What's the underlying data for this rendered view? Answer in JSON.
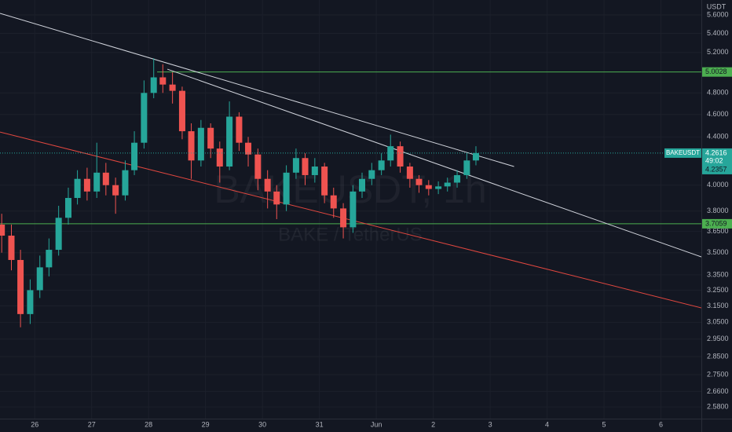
{
  "chart_data": {
    "type": "candlestick",
    "title": "BAKEUSDT, 1h",
    "subtitle": "BAKE / TetherUS",
    "y_unit": "USDT",
    "log_scale": true,
    "grid": true,
    "xlim": [
      25.39,
      37.71
    ],
    "ylim": [
      2.521,
      5.768
    ],
    "xticks": [
      26,
      27,
      28,
      29,
      30,
      31,
      {
        "value": 32,
        "label": "Jun"
      },
      {
        "value": 33,
        "label": "2"
      },
      {
        "value": 34,
        "label": "3"
      },
      {
        "value": 35,
        "label": "4"
      },
      {
        "value": 36,
        "label": "5"
      },
      {
        "value": 37,
        "label": "6"
      }
    ],
    "yticks": [
      {
        "value": 5.6,
        "label": "5.6000"
      },
      {
        "value": 5.4,
        "label": "5.4000"
      },
      {
        "value": 5.2,
        "label": "5.2000"
      },
      {
        "value": 4.8,
        "label": "4.8000"
      },
      {
        "value": 4.6,
        "label": "4.6000"
      },
      {
        "value": 4.4,
        "label": "4.4000"
      },
      {
        "value": 4.0,
        "label": "4.0000"
      },
      {
        "value": 3.8,
        "label": "3.8000"
      },
      {
        "value": 3.65,
        "label": "3.6500"
      },
      {
        "value": 3.5,
        "label": "3.5000"
      },
      {
        "value": 3.35,
        "label": "3.3500"
      },
      {
        "value": 3.25,
        "label": "3.2500"
      },
      {
        "value": 3.15,
        "label": "3.1500"
      },
      {
        "value": 3.05,
        "label": "3.0500"
      },
      {
        "value": 2.95,
        "label": "2.9500"
      },
      {
        "value": 2.85,
        "label": "2.8500"
      },
      {
        "value": 2.75,
        "label": "2.7500"
      },
      {
        "value": 2.66,
        "label": "2.6600"
      },
      {
        "value": 2.58,
        "label": "2.5800"
      }
    ],
    "up_color": "#26a69a",
    "down_color": "#ef5350",
    "candles": {
      "x": [
        25.42,
        25.59,
        25.75,
        25.92,
        26.09,
        26.25,
        26.42,
        26.59,
        26.75,
        26.92,
        27.09,
        27.25,
        27.42,
        27.59,
        27.75,
        27.92,
        28.09,
        28.25,
        28.42,
        28.59,
        28.75,
        28.92,
        29.09,
        29.25,
        29.42,
        29.59,
        29.75,
        29.92,
        30.09,
        30.25,
        30.42,
        30.59,
        30.75,
        30.92,
        31.09,
        31.25,
        31.42,
        31.59,
        31.75,
        31.92,
        32.09,
        32.25,
        32.42,
        32.59,
        32.75,
        32.92,
        33.09,
        33.25,
        33.42,
        33.59,
        33.75
      ],
      "open": [
        3.7,
        3.62,
        3.45,
        3.1,
        3.25,
        3.4,
        3.52,
        3.75,
        3.9,
        4.05,
        3.95,
        4.1,
        4.0,
        3.92,
        4.12,
        4.35,
        4.8,
        4.95,
        4.88,
        4.82,
        4.45,
        4.2,
        4.48,
        4.3,
        4.15,
        4.58,
        4.35,
        4.25,
        4.05,
        3.95,
        3.85,
        4.1,
        4.22,
        4.08,
        4.15,
        3.92,
        3.82,
        3.68,
        3.95,
        4.05,
        4.12,
        4.2,
        4.32,
        4.15,
        4.05,
        4.0,
        3.97,
        3.99,
        4.02,
        4.08,
        4.2
      ],
      "high": [
        3.78,
        3.7,
        3.52,
        3.32,
        3.48,
        3.6,
        3.84,
        3.98,
        4.12,
        4.14,
        4.35,
        4.18,
        4.06,
        4.2,
        4.45,
        4.92,
        5.14,
        5.08,
        5.0,
        4.86,
        4.52,
        4.55,
        4.52,
        4.36,
        4.72,
        4.62,
        4.4,
        4.3,
        4.12,
        4.0,
        4.16,
        4.3,
        4.26,
        4.22,
        4.18,
        3.98,
        3.86,
        4.0,
        4.1,
        4.18,
        4.26,
        4.42,
        4.36,
        4.18,
        4.08,
        4.04,
        4.03,
        4.06,
        4.12,
        4.26,
        4.32
      ],
      "low": [
        3.5,
        3.38,
        3.02,
        3.04,
        3.2,
        3.34,
        3.48,
        3.7,
        3.85,
        3.88,
        3.9,
        3.92,
        3.78,
        3.88,
        4.08,
        4.3,
        4.75,
        4.8,
        4.7,
        4.38,
        4.05,
        4.15,
        4.22,
        4.02,
        4.12,
        4.28,
        4.15,
        3.96,
        3.82,
        3.74,
        3.8,
        4.05,
        4.0,
        4.02,
        3.86,
        3.75,
        3.6,
        3.64,
        3.9,
        4.0,
        4.08,
        4.15,
        4.1,
        3.98,
        3.94,
        3.92,
        3.93,
        3.95,
        3.98,
        4.05,
        4.16
      ],
      "close": [
        3.62,
        3.45,
        3.1,
        3.25,
        3.4,
        3.52,
        3.75,
        3.9,
        4.05,
        3.95,
        4.1,
        4.0,
        3.92,
        4.12,
        4.35,
        4.8,
        4.95,
        4.88,
        4.82,
        4.45,
        4.2,
        4.48,
        4.3,
        4.15,
        4.58,
        4.35,
        4.25,
        4.05,
        3.95,
        3.85,
        4.1,
        4.22,
        4.08,
        4.15,
        3.92,
        3.82,
        3.68,
        3.95,
        4.05,
        4.12,
        4.2,
        4.32,
        4.15,
        4.05,
        4.0,
        3.97,
        3.99,
        4.02,
        4.08,
        4.2,
        4.2616
      ]
    },
    "trendlines": [
      {
        "x": [
          25.39,
          34.42
        ],
        "values": [
          5.618,
          4.15
        ],
        "color": "#d1d4dc"
      },
      {
        "x": [
          28.33,
          37.71
        ],
        "values": [
          5.031,
          3.471
        ],
        "color": "#d1d4dc"
      },
      {
        "x": [
          25.39,
          37.71
        ],
        "values": [
          4.443,
          3.138
        ],
        "color": "#e0473f"
      }
    ],
    "levels": [
      {
        "value": 5.0028,
        "x": [
          28.15,
          37.71
        ],
        "color": "#4caf50"
      },
      {
        "value": 3.7059,
        "x": [
          25.39,
          37.71
        ],
        "color": "#4caf50"
      }
    ],
    "last_price": {
      "name": "BAKEUSDT",
      "value": 4.2616,
      "countdown": "49:02",
      "color": "#26a69a"
    },
    "second_price": {
      "value": 4.2357,
      "color": "#26a69a"
    }
  }
}
